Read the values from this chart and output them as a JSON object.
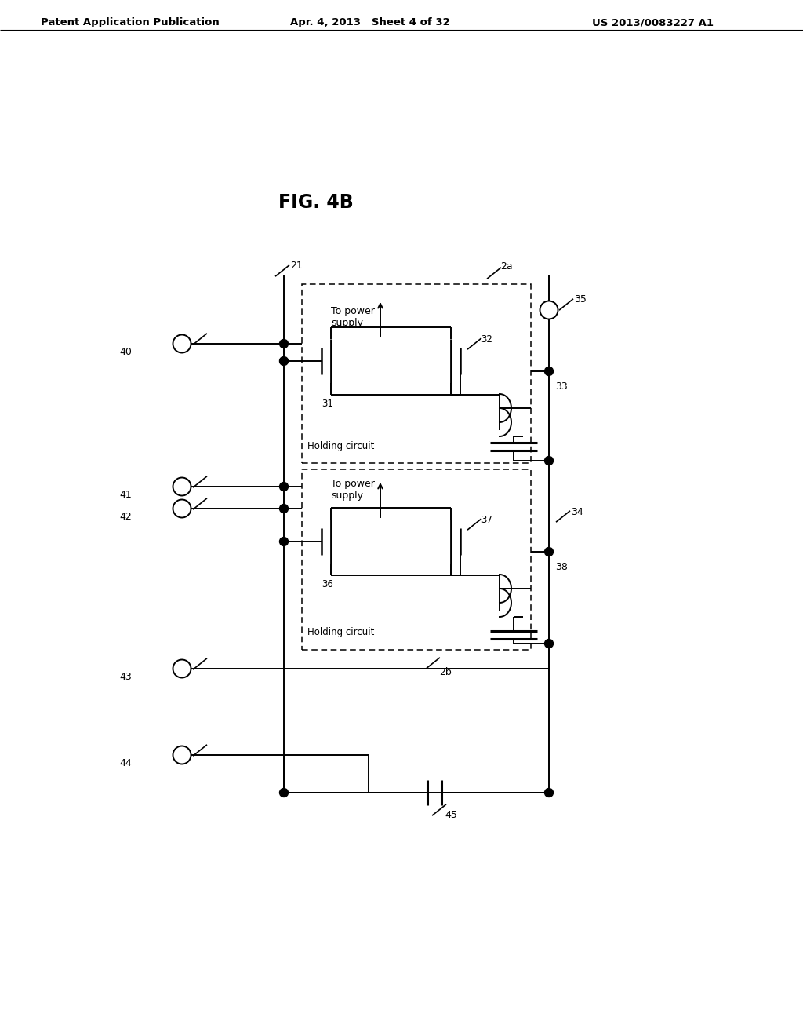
{
  "title": "FIG. 4B",
  "header_left": "Patent Application Publication",
  "header_mid": "Apr. 4, 2013   Sheet 4 of 32",
  "header_right": "US 2013/0083227 A1",
  "bg_color": "#ffffff"
}
